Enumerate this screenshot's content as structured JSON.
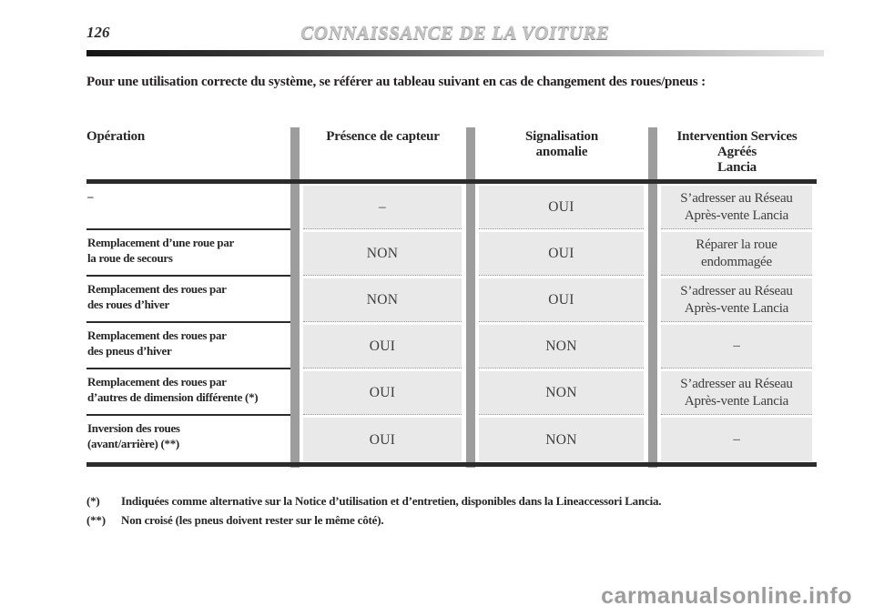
{
  "page": {
    "number": "126",
    "header_title": "CONNAISSANCE DE LA VOITURE",
    "intro": "Pour une utilisation correcte du système, se référer au tableau suivant en cas de changement des roues/pneus :",
    "watermark": "carmanualsonline.info"
  },
  "table": {
    "headers": {
      "operation": "Opération",
      "sensor": "Présence de capteur",
      "signal": "Signalisation\nanomalie",
      "intervention": "Intervention Services\nAgréés\nLancia"
    },
    "rows": [
      {
        "operation": "–",
        "sensor": "–",
        "signal": "OUI",
        "intervention": "S’adresser au Réseau\nAprès-vente Lancia"
      },
      {
        "operation": "Remplacement d’une roue par\nla roue de secours",
        "sensor": "NON",
        "signal": "OUI",
        "intervention": "Réparer la roue\nendommagée"
      },
      {
        "operation": "Remplacement des roues par\ndes roues d’hiver",
        "sensor": "NON",
        "signal": "OUI",
        "intervention": "S’adresser au Réseau\nAprès-vente Lancia"
      },
      {
        "operation": "Remplacement des roues par\ndes pneus d’hiver",
        "sensor": "OUI",
        "signal": "NON",
        "intervention": "–"
      },
      {
        "operation": "Remplacement des roues par\nd’autres de dimension différente (*)",
        "sensor": "OUI",
        "signal": "NON",
        "intervention": "S’adresser au Réseau\nAprès-vente Lancia"
      },
      {
        "operation": "Inversion des roues\n(avant/arrière) (**)",
        "sensor": "OUI",
        "signal": "NON",
        "intervention": "–"
      }
    ]
  },
  "footnotes": [
    {
      "marker": "(*)",
      "text": "Indiquées comme alternative sur la Notice d’utilisation et d’entretien, disponibles dans la Lineaccessori Lancia."
    },
    {
      "marker": "(**)",
      "text": "Non croisé (les pneus doivent rester sur le même côté)."
    }
  ]
}
